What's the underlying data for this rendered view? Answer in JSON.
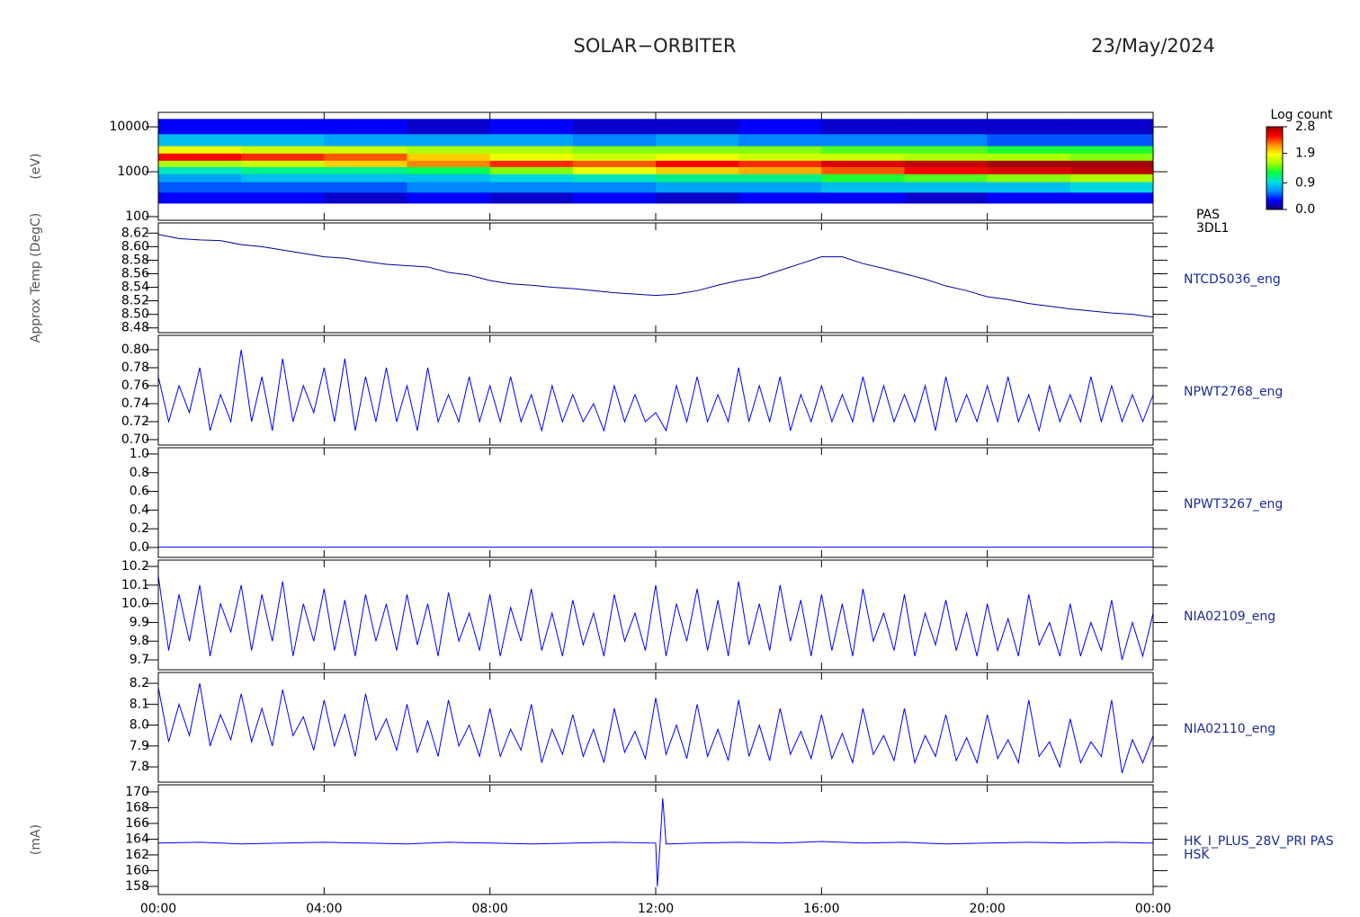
{
  "title": "SOLAR−ORBITER",
  "date": "23/May/2024",
  "chart_data": [
    {
      "type": "heatmap",
      "log": true,
      "ylim": [
        83,
        21000
      ],
      "yticks": [
        100,
        1000,
        10000
      ],
      "xlim": [
        0,
        24
      ],
      "ylabel": "(eV)",
      "label_lines": [
        "PAS",
        "3DL1"
      ],
      "x": [
        0,
        2,
        4,
        6,
        8,
        10,
        12,
        14,
        16,
        18,
        20,
        22,
        24
      ],
      "y": [
        200,
        350,
        600,
        900,
        1300,
        1800,
        2600,
        3800,
        7000,
        15000
      ],
      "z": [
        [
          0.3,
          0.3,
          0.2,
          0.3,
          0.2,
          0.3,
          0.2,
          0.3,
          0.3,
          0.2,
          0.3,
          0.3
        ],
        [
          0.5,
          0.5,
          0.5,
          0.6,
          0.6,
          0.6,
          0.7,
          0.7,
          0.8,
          0.8,
          0.8,
          0.9
        ],
        [
          0.7,
          0.8,
          0.8,
          0.8,
          0.9,
          1.0,
          1.1,
          1.1,
          1.3,
          1.4,
          1.5,
          1.6
        ],
        [
          1.0,
          1.1,
          1.1,
          1.2,
          1.5,
          1.8,
          2.0,
          2.1,
          2.3,
          2.5,
          2.6,
          2.7
        ],
        [
          1.6,
          1.7,
          2.0,
          2.2,
          2.4,
          2.3,
          2.5,
          2.4,
          2.6,
          2.7,
          2.8,
          2.8
        ],
        [
          2.5,
          2.4,
          2.3,
          2.0,
          1.8,
          1.7,
          1.8,
          1.7,
          1.7,
          1.6,
          1.6,
          1.5
        ],
        [
          1.8,
          1.7,
          1.7,
          1.6,
          1.6,
          1.5,
          1.5,
          1.5,
          1.4,
          1.4,
          1.3,
          1.3
        ],
        [
          0.8,
          0.8,
          0.7,
          0.7,
          0.7,
          0.6,
          0.7,
          0.6,
          0.6,
          0.6,
          0.5,
          0.5
        ],
        [
          0.3,
          0.3,
          0.3,
          0.2,
          0.3,
          0.2,
          0.2,
          0.3,
          0.2,
          0.2,
          0.2,
          0.2
        ]
      ],
      "zlabel": "Log count",
      "zlim": [
        0,
        2.8
      ],
      "zticks": [
        {
          "value": 0,
          "label": "0.0"
        },
        0.9,
        1.9,
        2.8
      ],
      "colorscale": [
        "#1a0070",
        "#0000ff",
        "#0090ff",
        "#00e0e0",
        "#00ff40",
        "#a0ff00",
        "#ffff00",
        "#ff9000",
        "#ff0000",
        "#a00000"
      ]
    },
    {
      "type": "line",
      "ylim": [
        8.473,
        8.635
      ],
      "xlim": [
        0,
        24
      ],
      "ylabel": "Approx Temp (DegC)",
      "yticks": [
        8.48,
        {
          "value": 8.5,
          "label": "8.50"
        },
        8.52,
        8.54,
        8.56,
        8.58,
        {
          "value": 8.6,
          "label": "8.60"
        },
        8.62
      ],
      "label_lines": [
        "NTCD5036_eng"
      ],
      "x": [
        0,
        0.5,
        1,
        1.5,
        2,
        2.5,
        3,
        3.5,
        4,
        4.5,
        5,
        5.5,
        6,
        6.5,
        7,
        7.5,
        8,
        8.5,
        9,
        9.5,
        10,
        10.5,
        11,
        11.5,
        12,
        12.5,
        13,
        13.5,
        14,
        14.5,
        15,
        15.5,
        16,
        16.5,
        17,
        17.5,
        18,
        18.5,
        19,
        19.5,
        20,
        20.5,
        21,
        21.5,
        22,
        22.5,
        23,
        23.5,
        24
      ],
      "series": [
        {
          "color": "#0000a0",
          "values": [
            8.618,
            8.612,
            8.61,
            8.609,
            8.603,
            8.6,
            8.595,
            8.59,
            8.585,
            8.583,
            8.578,
            8.574,
            8.572,
            8.57,
            8.562,
            8.558,
            8.55,
            8.545,
            8.543,
            8.54,
            8.538,
            8.535,
            8.532,
            8.53,
            8.528,
            8.53,
            8.535,
            8.543,
            8.55,
            8.555,
            8.565,
            8.575,
            8.585,
            8.585,
            8.575,
            8.568,
            8.56,
            8.552,
            8.542,
            8.535,
            8.526,
            8.522,
            8.516,
            8.512,
            8.508,
            8.505,
            8.502,
            8.5,
            8.496
          ]
        }
      ]
    },
    {
      "type": "line",
      "ylim": [
        0.694,
        0.816
      ],
      "xlim": [
        0,
        24
      ],
      "yticks": [
        {
          "value": 0.7,
          "label": "0.70"
        },
        0.72,
        0.74,
        0.76,
        0.78,
        {
          "value": 0.8,
          "label": "0.80"
        }
      ],
      "label_lines": [
        "NPWT2768_eng"
      ],
      "x": [
        0,
        0.25,
        0.5,
        0.75,
        1,
        1.25,
        1.5,
        1.75,
        2,
        2.25,
        2.5,
        2.75,
        3,
        3.25,
        3.5,
        3.75,
        4,
        4.25,
        4.5,
        4.75,
        5,
        5.25,
        5.5,
        5.75,
        6,
        6.25,
        6.5,
        6.75,
        7,
        7.25,
        7.5,
        7.75,
        8,
        8.25,
        8.5,
        8.75,
        9,
        9.25,
        9.5,
        9.75,
        10,
        10.25,
        10.5,
        10.75,
        11,
        11.25,
        11.5,
        11.75,
        12,
        12.25,
        12.5,
        12.75,
        13,
        13.25,
        13.5,
        13.75,
        14,
        14.25,
        14.5,
        14.75,
        15,
        15.25,
        15.5,
        15.75,
        16,
        16.25,
        16.5,
        16.75,
        17,
        17.25,
        17.5,
        17.75,
        18,
        18.25,
        18.5,
        18.75,
        19,
        19.25,
        19.5,
        19.75,
        20,
        20.25,
        20.5,
        20.75,
        21,
        21.25,
        21.5,
        21.75,
        22,
        22.25,
        22.5,
        22.75,
        23,
        23.25,
        23.5,
        23.75,
        24
      ],
      "series": [
        {
          "color": "#0000ff",
          "values": [
            0.77,
            0.72,
            0.76,
            0.73,
            0.78,
            0.71,
            0.75,
            0.72,
            0.8,
            0.72,
            0.77,
            0.71,
            0.79,
            0.72,
            0.76,
            0.73,
            0.78,
            0.72,
            0.79,
            0.71,
            0.77,
            0.72,
            0.78,
            0.72,
            0.76,
            0.71,
            0.78,
            0.72,
            0.75,
            0.72,
            0.77,
            0.72,
            0.76,
            0.72,
            0.77,
            0.72,
            0.75,
            0.71,
            0.76,
            0.72,
            0.75,
            0.72,
            0.74,
            0.71,
            0.76,
            0.72,
            0.75,
            0.72,
            0.73,
            0.71,
            0.76,
            0.72,
            0.77,
            0.72,
            0.75,
            0.72,
            0.78,
            0.72,
            0.76,
            0.72,
            0.77,
            0.71,
            0.75,
            0.72,
            0.76,
            0.72,
            0.75,
            0.72,
            0.77,
            0.72,
            0.76,
            0.72,
            0.75,
            0.72,
            0.76,
            0.71,
            0.77,
            0.72,
            0.75,
            0.72,
            0.76,
            0.72,
            0.77,
            0.72,
            0.75,
            0.71,
            0.76,
            0.72,
            0.75,
            0.72,
            0.77,
            0.72,
            0.76,
            0.72,
            0.75,
            0.72,
            0.75
          ]
        }
      ]
    },
    {
      "type": "line",
      "ylim": [
        -0.106,
        1.067
      ],
      "xlim": [
        0,
        24
      ],
      "yticks": [
        {
          "value": 0,
          "label": "0.0"
        },
        0.2,
        0.4,
        0.6,
        0.8,
        {
          "value": 1,
          "label": "1.0"
        }
      ],
      "label_lines": [
        "NPWT3267_eng"
      ],
      "x": [
        0,
        2,
        4,
        6,
        8,
        10,
        12,
        14,
        16,
        18,
        20,
        22,
        24
      ],
      "series": [
        {
          "color": "#0000ff",
          "values": [
            0.003,
            0.003,
            0.003,
            0.003,
            0.003,
            0.003,
            0.003,
            0.003,
            0.003,
            0.003,
            0.003,
            0.003,
            0.003
          ]
        }
      ]
    },
    {
      "type": "line",
      "ylim": [
        9.647,
        10.234
      ],
      "xlim": [
        0,
        24
      ],
      "yticks": [
        9.7,
        9.8,
        9.9,
        {
          "value": 10,
          "label": "10.0"
        },
        10.1,
        10.2
      ],
      "label_lines": [
        "NIA02109_eng"
      ],
      "x": [
        0,
        0.25,
        0.5,
        0.75,
        1,
        1.25,
        1.5,
        1.75,
        2,
        2.25,
        2.5,
        2.75,
        3,
        3.25,
        3.5,
        3.75,
        4,
        4.25,
        4.5,
        4.75,
        5,
        5.25,
        5.5,
        5.75,
        6,
        6.25,
        6.5,
        6.75,
        7,
        7.25,
        7.5,
        7.75,
        8,
        8.25,
        8.5,
        8.75,
        9,
        9.25,
        9.5,
        9.75,
        10,
        10.25,
        10.5,
        10.75,
        11,
        11.25,
        11.5,
        11.75,
        12,
        12.25,
        12.5,
        12.75,
        13,
        13.25,
        13.5,
        13.75,
        14,
        14.25,
        14.5,
        14.75,
        15,
        15.25,
        15.5,
        15.75,
        16,
        16.25,
        16.5,
        16.75,
        17,
        17.25,
        17.5,
        17.75,
        18,
        18.25,
        18.5,
        18.75,
        19,
        19.25,
        19.5,
        19.75,
        20,
        20.25,
        20.5,
        20.75,
        21,
        21.25,
        21.5,
        21.75,
        22,
        22.25,
        22.5,
        22.75,
        23,
        23.25,
        23.5,
        23.75,
        24
      ],
      "series": [
        {
          "color": "#0000ff",
          "values": [
            10.15,
            9.75,
            10.05,
            9.8,
            10.1,
            9.72,
            10.0,
            9.85,
            10.1,
            9.75,
            10.05,
            9.8,
            10.12,
            9.72,
            10.0,
            9.8,
            10.08,
            9.75,
            10.02,
            9.72,
            10.05,
            9.8,
            10.0,
            9.75,
            10.05,
            9.78,
            10.0,
            9.72,
            10.06,
            9.8,
            9.95,
            9.75,
            10.05,
            9.72,
            9.98,
            9.8,
            10.08,
            9.75,
            9.95,
            9.72,
            10.02,
            9.78,
            9.95,
            9.72,
            10.05,
            9.8,
            9.95,
            9.75,
            10.1,
            9.72,
            10.0,
            9.8,
            10.08,
            9.75,
            10.02,
            9.72,
            10.12,
            9.78,
            10.0,
            9.75,
            10.1,
            9.8,
            10.02,
            9.72,
            10.05,
            9.75,
            10.0,
            9.72,
            10.08,
            9.8,
            9.95,
            9.75,
            10.05,
            9.72,
            9.95,
            9.78,
            10.02,
            9.75,
            9.95,
            9.72,
            10.0,
            9.75,
            9.92,
            9.72,
            10.05,
            9.78,
            9.9,
            9.72,
            10.0,
            9.72,
            9.9,
            9.75,
            10.02,
            9.7,
            9.9,
            9.72,
            9.95
          ]
        }
      ]
    },
    {
      "type": "line",
      "ylim": [
        7.727,
        8.252
      ],
      "xlim": [
        0,
        24
      ],
      "yticks": [
        7.8,
        7.9,
        {
          "value": 8,
          "label": "8.0"
        },
        8.1,
        8.2
      ],
      "label_lines": [
        "NIA02110_eng"
      ],
      "x": [
        0,
        0.25,
        0.5,
        0.75,
        1,
        1.25,
        1.5,
        1.75,
        2,
        2.25,
        2.5,
        2.75,
        3,
        3.25,
        3.5,
        3.75,
        4,
        4.25,
        4.5,
        4.75,
        5,
        5.25,
        5.5,
        5.75,
        6,
        6.25,
        6.5,
        6.75,
        7,
        7.25,
        7.5,
        7.75,
        8,
        8.25,
        8.5,
        8.75,
        9,
        9.25,
        9.5,
        9.75,
        10,
        10.25,
        10.5,
        10.75,
        11,
        11.25,
        11.5,
        11.75,
        12,
        12.25,
        12.5,
        12.75,
        13,
        13.25,
        13.5,
        13.75,
        14,
        14.25,
        14.5,
        14.75,
        15,
        15.25,
        15.5,
        15.75,
        16,
        16.25,
        16.5,
        16.75,
        17,
        17.25,
        17.5,
        17.75,
        18,
        18.25,
        18.5,
        18.75,
        19,
        19.25,
        19.5,
        19.75,
        20,
        20.25,
        20.5,
        20.75,
        21,
        21.25,
        21.5,
        21.75,
        22,
        22.25,
        22.5,
        22.75,
        23,
        23.25,
        23.5,
        23.75,
        24
      ],
      "series": [
        {
          "color": "#0000ff",
          "values": [
            8.18,
            7.92,
            8.1,
            7.95,
            8.2,
            7.9,
            8.05,
            7.93,
            8.15,
            7.92,
            8.08,
            7.9,
            8.17,
            7.95,
            8.04,
            7.88,
            8.12,
            7.9,
            8.05,
            7.85,
            8.15,
            7.93,
            8.03,
            7.88,
            8.1,
            7.87,
            8.02,
            7.85,
            8.12,
            7.9,
            8.0,
            7.85,
            8.08,
            7.85,
            7.98,
            7.88,
            8.1,
            7.82,
            7.98,
            7.86,
            8.05,
            7.85,
            7.98,
            7.82,
            8.08,
            7.87,
            7.97,
            7.84,
            8.13,
            7.86,
            8.0,
            7.84,
            8.1,
            7.85,
            7.98,
            7.83,
            8.12,
            7.85,
            8.0,
            7.83,
            8.08,
            7.86,
            7.97,
            7.84,
            8.05,
            7.84,
            7.96,
            7.82,
            8.08,
            7.86,
            7.95,
            7.83,
            8.08,
            7.82,
            7.95,
            7.85,
            8.05,
            7.83,
            7.94,
            7.82,
            8.05,
            7.84,
            7.93,
            7.82,
            8.12,
            7.85,
            7.92,
            7.8,
            8.03,
            7.82,
            7.92,
            7.85,
            8.12,
            7.77,
            7.93,
            7.82,
            7.95
          ]
        }
      ]
    },
    {
      "type": "line",
      "ylim": [
        156.97,
        170.9
      ],
      "xlim": [
        0,
        24
      ],
      "ylabel": "(mA)",
      "yticks": [
        158,
        160,
        162,
        164,
        166,
        168,
        170
      ],
      "label_lines": [
        "HK_I_PLUS_28V_PRI PAS",
        "HSK"
      ],
      "xticks": [
        {
          "value": 0,
          "label": "00:00"
        },
        {
          "value": 4,
          "label": "04:00"
        },
        {
          "value": 8,
          "label": "08:00"
        },
        {
          "value": 12,
          "label": "12:00"
        },
        {
          "value": 16,
          "label": "16:00"
        },
        {
          "value": 20,
          "label": "20:00"
        },
        {
          "value": 24,
          "label": "00:00"
        }
      ],
      "x": [
        0,
        1,
        2,
        3,
        4,
        5,
        6,
        7,
        8,
        9,
        10,
        11,
        12,
        12.04,
        12.1,
        12.17,
        12.25,
        13,
        14,
        15,
        16,
        17,
        18,
        19,
        20,
        21,
        22,
        23,
        24
      ],
      "series": [
        {
          "color": "#0000ff",
          "values": [
            163.5,
            163.6,
            163.4,
            163.5,
            163.6,
            163.5,
            163.4,
            163.6,
            163.5,
            163.4,
            163.5,
            163.6,
            163.5,
            158.0,
            163.0,
            169.2,
            163.4,
            163.5,
            163.6,
            163.5,
            163.7,
            163.5,
            163.6,
            163.4,
            163.5,
            163.6,
            163.5,
            163.6,
            163.5
          ]
        }
      ]
    }
  ]
}
